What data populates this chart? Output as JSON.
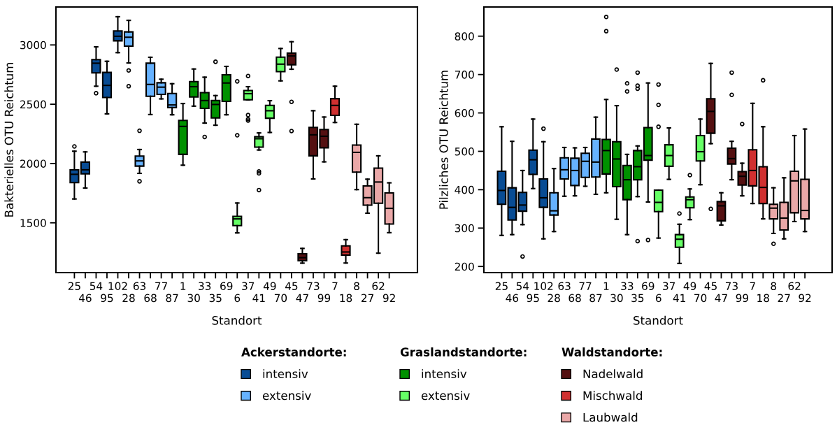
{
  "chart_data": [
    {
      "type": "box",
      "xlabel": "Standort",
      "ylabel": "Bakterielles OTU Reichtum",
      "ylim": [
        1080,
        3320
      ],
      "yticks": [
        1500,
        2000,
        2500,
        3000
      ],
      "grid": false,
      "legend": "bottom",
      "legend_title": [
        "Ackerstandorte:",
        "Graslandstandorte:",
        "Waldstandorte:"
      ],
      "categories": [
        "25",
        "46",
        "54",
        "95",
        "102",
        "28",
        "63",
        "68",
        "77",
        "87",
        "1",
        "30",
        "33",
        "35",
        "69",
        "6",
        "37",
        "41",
        "49",
        "70",
        "45",
        "47",
        "73",
        "99",
        "7",
        "18",
        "8",
        "27",
        "62",
        "92"
      ],
      "series": [
        {
          "name": "intensiv",
          "color": "#084c94",
          "boxes": [
            {
              "low": 1701,
              "q1": 1839,
              "median": 1909,
              "q3": 1947,
              "high": 2104,
              "outliers": [
                2144
              ]
            },
            {
              "low": 1793,
              "q1": 1913,
              "median": 1947,
              "q3": 2012,
              "high": 2098
            },
            {
              "low": 2652,
              "q1": 2764,
              "median": 2846,
              "q3": 2876,
              "high": 2984,
              "outliers": [
                2593
              ]
            },
            {
              "low": 2419,
              "q1": 2557,
              "median": 2659,
              "q3": 2768,
              "high": 2862
            },
            {
              "low": 2935,
              "q1": 3035,
              "median": 3073,
              "q3": 3118,
              "high": 3238
            },
            null,
            null,
            null,
            null,
            null,
            null,
            null,
            null,
            null,
            null,
            null,
            null,
            null,
            null,
            null,
            null,
            null,
            null,
            null,
            null,
            null,
            null,
            null,
            null,
            null
          ]
        },
        {
          "name": "extensiv",
          "color": "#66b2ff",
          "boxes": [
            null,
            null,
            null,
            null,
            null,
            {
              "low": 2848,
              "q1": 2990,
              "median": 3065,
              "q3": 3110,
              "high": 3207,
              "outliers": [
                2785,
                2652
              ]
            },
            {
              "low": 1917,
              "q1": 1978,
              "median": 2022,
              "q3": 2063,
              "high": 2118,
              "outliers": [
                2276,
                1850
              ]
            },
            {
              "low": 2413,
              "q1": 2567,
              "median": 2667,
              "q3": 2846,
              "high": 2896
            },
            {
              "low": 2545,
              "q1": 2583,
              "median": 2644,
              "q3": 2681,
              "high": 2711
            },
            {
              "low": 2411,
              "q1": 2472,
              "median": 2494,
              "q3": 2591,
              "high": 2673
            },
            null,
            null,
            null,
            null,
            null,
            null,
            null,
            null,
            null,
            null,
            null,
            null,
            null,
            null,
            null,
            null,
            null,
            null,
            null,
            null
          ]
        },
        {
          "name": "intensiv",
          "color": "#009100",
          "boxes": [
            null,
            null,
            null,
            null,
            null,
            null,
            null,
            null,
            null,
            null,
            {
              "low": 1986,
              "q1": 2077,
              "median": 2313,
              "q3": 2364,
              "high": 2506
            },
            {
              "low": 2484,
              "q1": 2561,
              "median": 2648,
              "q3": 2691,
              "high": 2797
            },
            {
              "low": 2341,
              "q1": 2465,
              "median": 2531,
              "q3": 2598,
              "high": 2728,
              "outliers": [
                2224
              ]
            },
            {
              "low": 2323,
              "q1": 2384,
              "median": 2498,
              "q3": 2531,
              "high": 2573,
              "outliers": [
                2858
              ]
            },
            {
              "low": 2411,
              "q1": 2524,
              "median": 2679,
              "q3": 2748,
              "high": 2819
            },
            null,
            null,
            null,
            null,
            null,
            null,
            null,
            null,
            null,
            null,
            null,
            null,
            null,
            null,
            null
          ]
        },
        {
          "name": "extensiv",
          "color": "#66ff66",
          "boxes": [
            null,
            null,
            null,
            null,
            null,
            null,
            null,
            null,
            null,
            null,
            null,
            null,
            null,
            null,
            null,
            {
              "low": 1415,
              "q1": 1476,
              "median": 1533,
              "q3": 1555,
              "high": 1667,
              "outliers": [
                2693,
                2238
              ]
            },
            {
              "low": 2537,
              "q1": 2537,
              "median": 2589,
              "q3": 2616,
              "high": 2648,
              "outliers": [
                2738,
                2409,
                2374,
                2362
              ]
            },
            {
              "low": 2114,
              "q1": 2138,
              "median": 2209,
              "q3": 2226,
              "high": 2258,
              "outliers": [
                1933,
                1917,
                1776
              ]
            },
            {
              "low": 2262,
              "q1": 2382,
              "median": 2445,
              "q3": 2490,
              "high": 2530
            },
            {
              "low": 2697,
              "q1": 2775,
              "median": 2838,
              "q3": 2897,
              "high": 2970
            },
            null,
            null,
            null,
            null,
            null,
            null,
            null,
            null,
            null,
            null
          ]
        },
        {
          "name": "Nadelwald",
          "color": "#541011",
          "boxes": [
            null,
            null,
            null,
            null,
            null,
            null,
            null,
            null,
            null,
            null,
            null,
            null,
            null,
            null,
            null,
            null,
            null,
            null,
            null,
            null,
            {
              "low": 2795,
              "q1": 2833,
              "median": 2907,
              "q3": 2931,
              "high": 3027,
              "outliers": [
                2520,
                2274
              ]
            },
            {
              "low": 1160,
              "q1": 1180,
              "median": 1206,
              "q3": 1239,
              "high": 1284
            },
            {
              "low": 1870,
              "q1": 2065,
              "median": 2242,
              "q3": 2305,
              "high": 2445
            },
            {
              "low": 2014,
              "q1": 2132,
              "median": 2230,
              "q3": 2287,
              "high": 2392
            },
            null,
            null,
            null,
            null,
            null,
            null
          ]
        },
        {
          "name": "Mischwald",
          "color": "#d03030",
          "boxes": [
            null,
            null,
            null,
            null,
            null,
            null,
            null,
            null,
            null,
            null,
            null,
            null,
            null,
            null,
            null,
            null,
            null,
            null,
            null,
            null,
            null,
            null,
            null,
            null,
            {
              "low": 2346,
              "q1": 2406,
              "median": 2490,
              "q3": 2547,
              "high": 2652
            },
            {
              "low": 1161,
              "q1": 1228,
              "median": 1254,
              "q3": 1305,
              "high": 1358
            },
            null,
            null,
            null,
            null
          ]
        },
        {
          "name": "Laubwald",
          "color": "#eaa8a8",
          "boxes": [
            null,
            null,
            null,
            null,
            null,
            null,
            null,
            null,
            null,
            null,
            null,
            null,
            null,
            null,
            null,
            null,
            null,
            null,
            null,
            null,
            null,
            null,
            null,
            null,
            null,
            null,
            {
              "low": 1780,
              "q1": 1927,
              "median": 2094,
              "q3": 2156,
              "high": 2331
            },
            {
              "low": 1581,
              "q1": 1649,
              "median": 1712,
              "q3": 1811,
              "high": 1868
            },
            {
              "low": 1244,
              "q1": 1665,
              "median": 1844,
              "q3": 1961,
              "high": 2065
            },
            {
              "low": 1417,
              "q1": 1490,
              "median": 1622,
              "q3": 1752,
              "high": 1837
            }
          ]
        }
      ]
    },
    {
      "type": "box",
      "xlabel": "Standort",
      "ylabel": "Pilzliches OTU Reichtum",
      "ylim": [
        184,
        876
      ],
      "yticks": [
        200,
        300,
        400,
        500,
        600,
        700,
        800
      ],
      "grid": false,
      "categories": [
        "25",
        "46",
        "54",
        "95",
        "102",
        "28",
        "63",
        "68",
        "77",
        "87",
        "1",
        "30",
        "33",
        "35",
        "69",
        "6",
        "37",
        "41",
        "49",
        "70",
        "45",
        "47",
        "73",
        "99",
        "7",
        "18",
        "8",
        "27",
        "62",
        "92"
      ],
      "series": [
        {
          "color": "#084c94",
          "boxes": [
            {
              "low": 281,
              "q1": 362,
              "median": 398,
              "q3": 448,
              "high": 564
            },
            {
              "low": 283,
              "q1": 321,
              "median": 354,
              "q3": 405,
              "high": 526
            },
            {
              "low": 309,
              "q1": 344,
              "median": 360,
              "q3": 393,
              "high": 450,
              "outliers": [
                226
              ]
            },
            {
              "low": 403,
              "q1": 440,
              "median": 478,
              "q3": 503,
              "high": 584
            },
            {
              "low": 272,
              "q1": 354,
              "median": 379,
              "q3": 428,
              "high": 525,
              "outliers": [
                559
              ]
            },
            null,
            null,
            null,
            null,
            null,
            null,
            null,
            null,
            null,
            null,
            null,
            null,
            null,
            null,
            null,
            null,
            null,
            null,
            null,
            null,
            null,
            null,
            null,
            null,
            null
          ]
        },
        {
          "color": "#66b2ff",
          "boxes": [
            null,
            null,
            null,
            null,
            null,
            {
              "low": 291,
              "q1": 334,
              "median": 345,
              "q3": 392,
              "high": 455
            },
            {
              "low": 383,
              "q1": 428,
              "median": 452,
              "q3": 483,
              "high": 510
            },
            {
              "low": 384,
              "q1": 411,
              "median": 450,
              "q3": 482,
              "high": 509
            },
            {
              "low": 409,
              "q1": 432,
              "median": 474,
              "q3": 495,
              "high": 510
            },
            {
              "low": 388,
              "q1": 433,
              "median": 472,
              "q3": 532,
              "high": 589
            },
            null,
            null,
            null,
            null,
            null,
            null,
            null,
            null,
            null,
            null,
            null,
            null,
            null,
            null,
            null,
            null,
            null,
            null,
            null,
            null
          ]
        },
        {
          "color": "#009100",
          "boxes": [
            null,
            null,
            null,
            null,
            null,
            null,
            null,
            null,
            null,
            null,
            {
              "low": 392,
              "q1": 441,
              "median": 502,
              "q3": 531,
              "high": 635,
              "outliers": [
                850,
                813
              ]
            },
            {
              "low": 323,
              "q1": 408,
              "median": 480,
              "q3": 525,
              "high": 619,
              "outliers": [
                713
              ]
            },
            {
              "low": 283,
              "q1": 374,
              "median": 426,
              "q3": 463,
              "high": 492,
              "outliers": [
                677,
                656
              ]
            },
            {
              "low": 382,
              "q1": 426,
              "median": 460,
              "q3": 502,
              "high": 514,
              "outliers": [
                705,
                671,
                663,
                266
              ]
            },
            {
              "low": 368,
              "q1": 477,
              "median": 489,
              "q3": 562,
              "high": 678,
              "outliers": [
                269
              ]
            },
            null,
            null,
            null,
            null,
            null,
            null,
            null,
            null,
            null,
            null,
            null,
            null,
            null,
            null,
            null
          ]
        },
        {
          "color": "#66ff66",
          "boxes": [
            null,
            null,
            null,
            null,
            null,
            null,
            null,
            null,
            null,
            null,
            null,
            null,
            null,
            null,
            null,
            {
              "low": 274,
              "q1": 343,
              "median": 367,
              "q3": 399,
              "high": 399,
              "outliers": [
                674,
                621,
                564
              ]
            },
            {
              "low": 427,
              "q1": 461,
              "median": 489,
              "q3": 517,
              "high": 561
            },
            {
              "low": 208,
              "q1": 250,
              "median": 271,
              "q3": 283,
              "high": 310,
              "outliers": [
                338
              ]
            },
            {
              "low": 322,
              "q1": 353,
              "median": 374,
              "q3": 381,
              "high": 402,
              "outliers": [
                438
              ]
            },
            {
              "low": 413,
              "q1": 475,
              "median": 499,
              "q3": 541,
              "high": 584
            },
            null,
            null,
            null,
            null,
            null,
            null,
            null,
            null,
            null,
            null
          ]
        },
        {
          "color": "#541011",
          "boxes": [
            null,
            null,
            null,
            null,
            null,
            null,
            null,
            null,
            null,
            null,
            null,
            null,
            null,
            null,
            null,
            null,
            null,
            null,
            null,
            null,
            {
              "low": 520,
              "q1": 547,
              "median": 604,
              "q3": 637,
              "high": 729,
              "outliers": [
                350
              ]
            },
            {
              "low": 308,
              "q1": 319,
              "median": 358,
              "q3": 369,
              "high": 392
            },
            {
              "low": 426,
              "q1": 467,
              "median": 481,
              "q3": 508,
              "high": 526,
              "outliers": [
                705,
                647
              ]
            },
            {
              "low": 384,
              "q1": 412,
              "median": 435,
              "q3": 447,
              "high": 469,
              "outliers": [
                571
              ]
            },
            null,
            null,
            null,
            null,
            null,
            null
          ]
        },
        {
          "color": "#d03030",
          "boxes": [
            null,
            null,
            null,
            null,
            null,
            null,
            null,
            null,
            null,
            null,
            null,
            null,
            null,
            null,
            null,
            null,
            null,
            null,
            null,
            null,
            null,
            null,
            null,
            null,
            {
              "low": 364,
              "q1": 410,
              "median": 450,
              "q3": 504,
              "high": 625
            },
            {
              "low": 324,
              "q1": 364,
              "median": 406,
              "q3": 460,
              "high": 564,
              "outliers": [
                685
              ]
            },
            null,
            null,
            null,
            null
          ]
        },
        {
          "color": "#eaa8a8",
          "boxes": [
            null,
            null,
            null,
            null,
            null,
            null,
            null,
            null,
            null,
            null,
            null,
            null,
            null,
            null,
            null,
            null,
            null,
            null,
            null,
            null,
            null,
            null,
            null,
            null,
            null,
            null,
            {
              "low": 286,
              "q1": 324,
              "median": 352,
              "q3": 362,
              "high": 405,
              "outliers": [
                259
              ]
            },
            {
              "low": 272,
              "q1": 295,
              "median": 326,
              "q3": 367,
              "high": 431
            },
            {
              "low": 317,
              "q1": 340,
              "median": 423,
              "q3": 448,
              "high": 541
            },
            {
              "low": 291,
              "q1": 324,
              "median": 346,
              "q3": 427,
              "high": 558
            }
          ]
        }
      ]
    }
  ]
}
